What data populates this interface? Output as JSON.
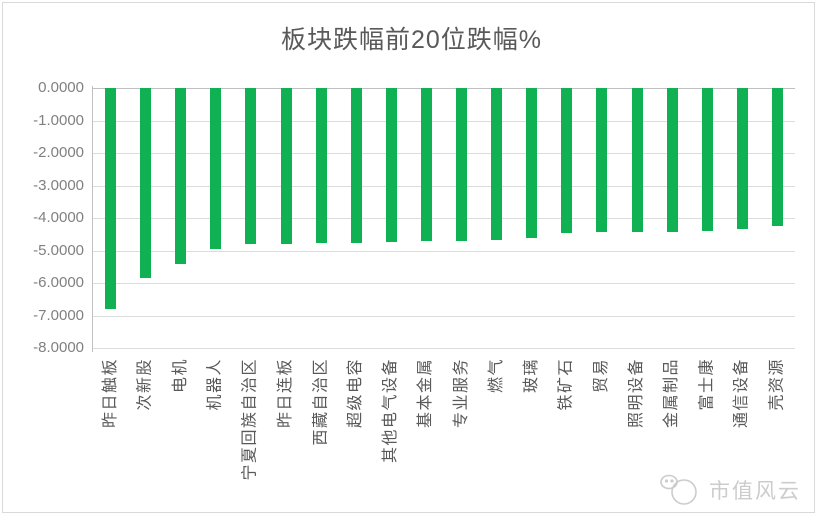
{
  "title": "板块跌幅前20位跌幅%",
  "watermark": {
    "text": "市值风云",
    "logo": "panda-cloud-logo"
  },
  "colors": {
    "bar": "#10B152",
    "gridline": "#DCDCDC",
    "axis_line": "#C0C0C0",
    "tick_text": "#808080",
    "category_text": "#595959",
    "title_text": "#595959",
    "frame_border": "#D9D9D9",
    "watermark": "#CCCCCC",
    "background": "#FFFFFF"
  },
  "chart_data": {
    "type": "bar",
    "title": "板块跌幅前20位跌幅%",
    "categories": [
      "昨日触板",
      "次新股",
      "电机",
      "机器人",
      "宁夏回族自治区",
      "昨日连板",
      "西藏自治区",
      "超级电容",
      "其他电气设备",
      "基本金属",
      "专业服务",
      "燃气",
      "玻璃",
      "铁矿石",
      "贸易",
      "照明设备",
      "金属制品",
      "富士康",
      "通信设备",
      "壳资源"
    ],
    "values": [
      -6.8,
      -5.86,
      -5.4,
      -4.96,
      -4.8,
      -4.79,
      -4.77,
      -4.76,
      -4.74,
      -4.72,
      -4.71,
      -4.68,
      -4.6,
      -4.45,
      -4.44,
      -4.44,
      -4.43,
      -4.4,
      -4.34,
      -4.26
    ],
    "xlabel": "",
    "ylabel": "",
    "ylim": [
      -8,
      0
    ],
    "ytick_step": 1,
    "ytick_labels": [
      "0.0000",
      "-1.0000",
      "-2.0000",
      "-3.0000",
      "-4.0000",
      "-5.0000",
      "-6.0000",
      "-7.0000",
      "-8.0000"
    ],
    "grid": true,
    "legend": false,
    "bar_color": "#10B152",
    "unit": "percent"
  }
}
